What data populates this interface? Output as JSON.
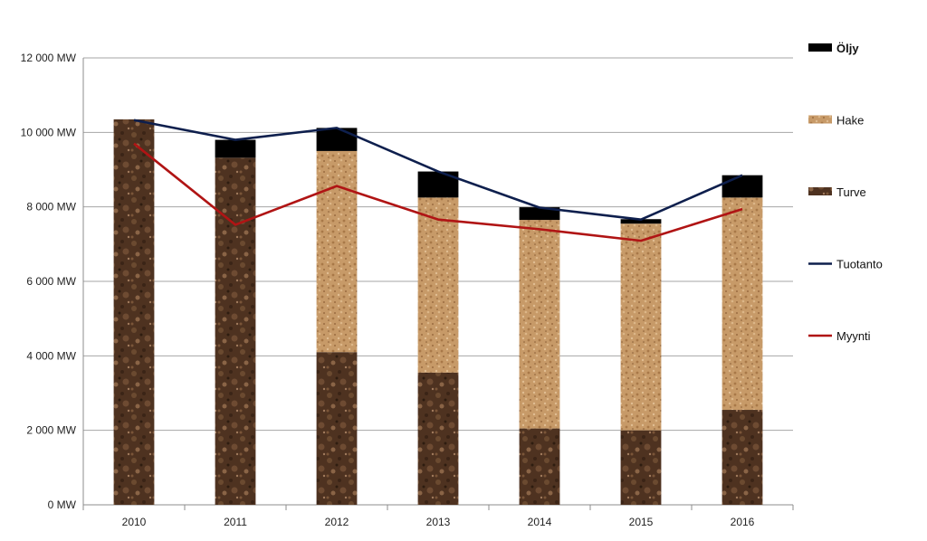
{
  "chart_data": {
    "type": "bar",
    "stacked": true,
    "categories": [
      "2010",
      "2011",
      "2012",
      "2013",
      "2014",
      "2015",
      "2016"
    ],
    "ylim": [
      0,
      12000
    ],
    "y_ticks": [
      0,
      2000,
      4000,
      6000,
      8000,
      10000,
      12000
    ],
    "y_tick_labels": [
      "0 MW",
      "2 000 MW",
      "4 000 MW",
      "6 000 MW",
      "8 000 MW",
      "10 000 MW",
      "12 000 MW"
    ],
    "grid": true,
    "legend_position": "right",
    "series": [
      {
        "name": "Turve",
        "kind": "bar",
        "color": "#5a3a22",
        "values": [
          10350,
          9320,
          4100,
          3550,
          2050,
          2000,
          2550
        ]
      },
      {
        "name": "Hake",
        "kind": "bar",
        "color": "#c99a66",
        "values": [
          0,
          0,
          5400,
          4700,
          5600,
          5550,
          5700
        ]
      },
      {
        "name": "Öljy",
        "kind": "bar",
        "color": "#000000",
        "values": [
          0,
          480,
          620,
          700,
          340,
          120,
          600
        ]
      },
      {
        "name": "Tuotanto",
        "kind": "line",
        "color": "#0e1f4d",
        "values": [
          10330,
          9800,
          10120,
          8950,
          7980,
          7660,
          8850
        ]
      },
      {
        "name": "Myynti",
        "kind": "line",
        "color": "#b01414",
        "values": [
          9700,
          7520,
          8560,
          7660,
          7400,
          7090,
          7940
        ]
      }
    ],
    "legend_order": [
      "Öljy",
      "Hake",
      "Turve",
      "Tuotanto",
      "Myynti"
    ]
  }
}
